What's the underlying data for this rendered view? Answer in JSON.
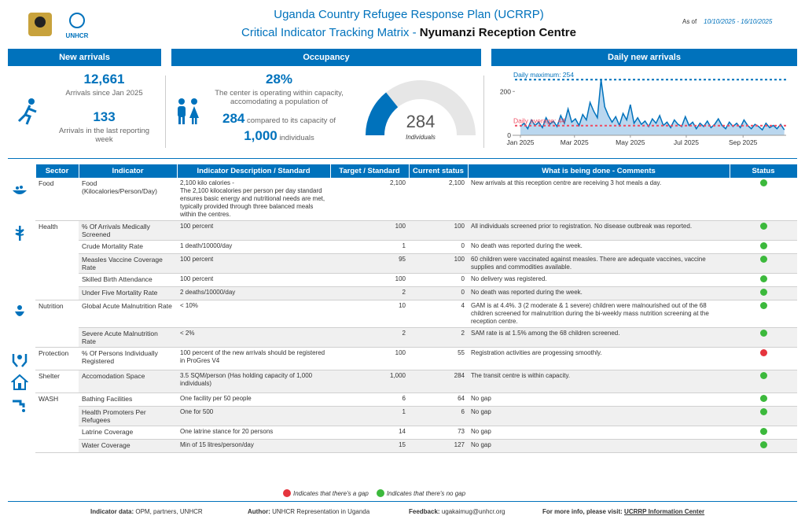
{
  "header": {
    "title": "Uganda Country Refugee Response Plan (UCRRP)",
    "subtitle_prefix": "Critical Indicator Tracking Matrix - ",
    "subtitle_site": "Nyumanzi Reception Centre",
    "as_of_label": "As of",
    "as_of_value": "10/10/2025 - 16/10/2025",
    "logo_text": "UNHCR"
  },
  "new_arrivals": {
    "heading": "New arrivals",
    "total": "12,661",
    "total_label": "Arrivals since Jan 2025",
    "week": "133",
    "week_label": "Arrivals in the last reporting week"
  },
  "occupancy": {
    "heading": "Occupancy",
    "percent": "28%",
    "text": "The center is operating within capacity, accomodating a population of",
    "population": "284",
    "compared": "compared to its capacity of",
    "capacity": "1,000",
    "individuals": "individuals",
    "gauge": {
      "value": 284,
      "max": 1000,
      "label": "Individuals",
      "color": "#0072bc",
      "rest_color": "#e6e6e6"
    }
  },
  "daily_chart": {
    "type": "area",
    "heading": "Daily new arrivals",
    "color": "#0072bc",
    "x": [
      0,
      4,
      8,
      12,
      16,
      20,
      24,
      28,
      32,
      36,
      40,
      44,
      48,
      52,
      56,
      60,
      64,
      68,
      72,
      76,
      80,
      84,
      88,
      92,
      96,
      100,
      104,
      108,
      112,
      116,
      120,
      124,
      128,
      132,
      136,
      140,
      144,
      148,
      152,
      156,
      160,
      164,
      168,
      172,
      176,
      180,
      184,
      188,
      192,
      196,
      200,
      204,
      208,
      212,
      216,
      220,
      224,
      228,
      232,
      236,
      240,
      244,
      248,
      252,
      256,
      260,
      264,
      268,
      272,
      276,
      280,
      284,
      288
    ],
    "values": [
      40,
      55,
      30,
      70,
      45,
      60,
      35,
      80,
      50,
      65,
      40,
      90,
      55,
      120,
      60,
      75,
      45,
      95,
      70,
      150,
      110,
      80,
      254,
      130,
      90,
      60,
      85,
      45,
      100,
      70,
      140,
      55,
      80,
      50,
      65,
      40,
      75,
      55,
      90,
      45,
      60,
      35,
      70,
      50,
      40,
      85,
      45,
      60,
      30,
      55,
      40,
      65,
      35,
      50,
      75,
      45,
      30,
      60,
      40,
      55,
      35,
      70,
      45,
      30,
      50,
      40,
      25,
      55,
      35,
      45,
      30,
      50,
      25
    ],
    "xlim": [
      -6,
      290
    ],
    "ylim": [
      0,
      280
    ],
    "yticks": [
      0,
      200
    ],
    "xticks": [
      {
        "value": 0,
        "label": "Jan 2025"
      },
      {
        "value": 59,
        "label": "Mar 2025"
      },
      {
        "value": 120,
        "label": "May 2025"
      },
      {
        "value": 181,
        "label": "Jul 2025"
      },
      {
        "value": 243,
        "label": "Sep 2025"
      }
    ],
    "annotations": [
      {
        "label": "Daily maximum: 254",
        "value": 254,
        "color": "#0072bc"
      },
      {
        "label": "Daily average: 44",
        "value": 44,
        "color": "#ef4a60"
      }
    ]
  },
  "table": {
    "headers": [
      "Sector",
      "Indicator",
      "Indicator Description / Standard",
      "Target / Standard",
      "Current status",
      "What is being done - Comments",
      "Status"
    ],
    "sectors": [
      {
        "name": "Food",
        "rows": [
          [
            "Food (Kilocalories/Person/Day)",
            "2,100 kilo calories -\nThe 2,100 kilocalories per person per day standard ensures basic energy and nutritional needs are met, typically provided through three balanced meals within the centres.",
            "2,100",
            "2,100",
            "New arrivals at this reception centre are receiving 3 hot meals a day.",
            "#3cb93c"
          ]
        ]
      },
      {
        "name": "Health",
        "rows": [
          [
            "% Of Arrivals Medically Screened",
            "100 percent",
            "100",
            "100",
            "All individuals screened prior to registration. No disease outbreak was reported.",
            "#3cb93c"
          ],
          [
            "Crude Mortality Rate",
            "1 death/10000/day",
            "1",
            "0",
            "No death was reported during the week.",
            "#3cb93c"
          ],
          [
            "Measles Vaccine Coverage Rate",
            "100 percent",
            "95",
            "100",
            "60 children were vaccinated against measles. There are adequate vaccines, vaccine supplies and commodities available.",
            "#3cb93c"
          ],
          [
            "Skilled Birth Attendance",
            "100 percent",
            "100",
            "0",
            "No delivery was registered.",
            "#3cb93c"
          ],
          [
            "Under Five Mortality Rate",
            "2 deaths/10000/day",
            "2",
            "0",
            "No death was reported during the week.",
            "#3cb93c"
          ]
        ]
      },
      {
        "name": "Nutrition",
        "rows": [
          [
            "Global Acute Malnutrition Rate",
            "< 10%",
            "10",
            "4",
            "GAM is at 4.4%. 3 (2 moderate & 1 severe) children were malnourished out of the 68 children screened for malnutrition during the bi-weekly mass nutrition screening at the reception centre.",
            "#3cb93c"
          ],
          [
            "Severe Acute Malnutrition Rate",
            "< 2%",
            "2",
            "2",
            "SAM rate is at 1.5% among the 68 children screened.",
            "#3cb93c"
          ]
        ]
      },
      {
        "name": "Protection",
        "rows": [
          [
            "% Of Persons Individually Registered",
            "100 percent of the new arrivals should be registered in ProGres V4",
            "100",
            "55",
            "Registration activities are progessing smoothly.",
            "#e5343d"
          ]
        ]
      },
      {
        "name": "Shelter",
        "rows": [
          [
            "Accomodation Space",
            "3.5 SQM/person (Has holding capacity of 1,000 individuals)",
            "1,000",
            "284",
            "The transit centre is within capacity.",
            "#3cb93c"
          ]
        ]
      },
      {
        "name": "WASH",
        "rows": [
          [
            "Bathing Facilities",
            "One facility per 50 people",
            "6",
            "64",
            "No gap",
            "#3cb93c"
          ],
          [
            "Health Promoters Per Refugees",
            "One for 500",
            "1",
            "6",
            "No gap",
            "#3cb93c"
          ],
          [
            "Latrine Coverage",
            "One latrine stance for 20 persons",
            "14",
            "73",
            "No gap",
            "#3cb93c"
          ],
          [
            "Water Coverage",
            "Min of 15 litres/person/day",
            "15",
            "127",
            "No gap",
            "#3cb93c"
          ]
        ]
      }
    ]
  },
  "legend": [
    {
      "label": "Indicates that there's a gap",
      "color": "#e5343d"
    },
    {
      "label": "Indicates that there's no gap",
      "color": "#3cb93c"
    }
  ],
  "footer": [
    {
      "label": "Indicator data:",
      "value": "OPM, partners, UNHCR"
    },
    {
      "label": "Author:",
      "value": "UNHCR Representation in Uganda"
    },
    {
      "label": "Feedback:",
      "value": "ugakaimug@unhcr.org"
    },
    {
      "label": "For more info, please visit:",
      "value": "UCRRP Information Center"
    }
  ]
}
